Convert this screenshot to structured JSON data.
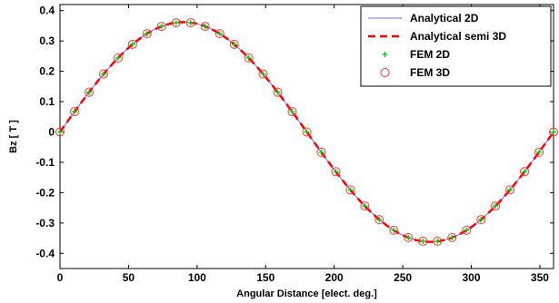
{
  "chart_data": {
    "type": "line",
    "xlabel": "Angular Distance [elect. deg.]",
    "ylabel": "Bz  [ T ]",
    "xlim": [
      0,
      360
    ],
    "ylim": [
      -0.45,
      0.42
    ],
    "xticks": [
      0,
      50,
      100,
      150,
      200,
      250,
      300,
      350
    ],
    "yticks": [
      0.4,
      0.3,
      0.2,
      0.1,
      0,
      -0.1,
      -0.2,
      -0.3,
      -0.4
    ],
    "grid": false,
    "legend_position": "top-right",
    "amplitude": 0.362,
    "series": [
      {
        "name": "Analytical 2D",
        "style": "solid-line",
        "color": "#6a6aff"
      },
      {
        "name": "Analytical semi 3D",
        "style": "dashed-line",
        "color": "#ff0000"
      },
      {
        "name": "FEM 2D",
        "style": "plus-marker",
        "color": "#00cc00",
        "x": [
          0,
          10.6,
          21.2,
          31.8,
          42.4,
          52.9,
          63.5,
          74.1,
          84.7,
          95.3,
          105.9,
          116.5,
          127.1,
          137.6,
          148.2,
          158.8,
          169.4,
          180,
          190.6,
          201.2,
          211.8,
          222.4,
          232.9,
          243.5,
          254.1,
          264.7,
          275.3,
          285.9,
          296.5,
          307.1,
          317.6,
          328.2,
          338.8,
          349.4,
          360
        ],
        "y": [
          0,
          0.067,
          0.131,
          0.191,
          0.244,
          0.289,
          0.324,
          0.348,
          0.36,
          0.36,
          0.348,
          0.324,
          0.289,
          0.244,
          0.191,
          0.131,
          0.067,
          0,
          -0.067,
          -0.131,
          -0.191,
          -0.244,
          -0.289,
          -0.324,
          -0.348,
          -0.36,
          -0.36,
          -0.348,
          -0.324,
          -0.289,
          -0.244,
          -0.191,
          -0.131,
          -0.067,
          0
        ]
      },
      {
        "name": "FEM 3D",
        "style": "circle-marker",
        "color": "#ff3333",
        "x": [
          0,
          10.6,
          21.2,
          31.8,
          42.4,
          52.9,
          63.5,
          74.1,
          84.7,
          95.3,
          105.9,
          116.5,
          127.1,
          137.6,
          148.2,
          158.8,
          169.4,
          180,
          190.6,
          201.2,
          211.8,
          222.4,
          232.9,
          243.5,
          254.1,
          264.7,
          275.3,
          285.9,
          296.5,
          307.1,
          317.6,
          328.2,
          338.8,
          349.4,
          360
        ],
        "y": [
          0,
          0.067,
          0.131,
          0.191,
          0.244,
          0.289,
          0.324,
          0.348,
          0.36,
          0.36,
          0.348,
          0.324,
          0.289,
          0.244,
          0.191,
          0.131,
          0.067,
          0,
          -0.067,
          -0.131,
          -0.191,
          -0.244,
          -0.289,
          -0.324,
          -0.348,
          -0.36,
          -0.36,
          -0.348,
          -0.324,
          -0.289,
          -0.244,
          -0.191,
          -0.131,
          -0.067,
          0
        ]
      }
    ]
  }
}
